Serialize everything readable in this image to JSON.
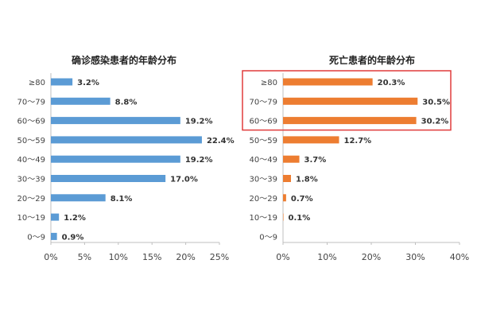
{
  "chart_data": [
    {
      "type": "bar",
      "orientation": "horizontal",
      "title": "确诊感染患者的年龄分布",
      "categories": [
        "≥80",
        "70～79",
        "60～69",
        "50～59",
        "40～49",
        "30～39",
        "20～29",
        "10～19",
        "0～9"
      ],
      "values": [
        3.2,
        8.8,
        19.2,
        22.4,
        19.2,
        17.0,
        8.1,
        1.2,
        0.9
      ],
      "value_labels": [
        "3.2%",
        "8.8%",
        "19.2%",
        "22.4%",
        "19.2%",
        "17.0%",
        "8.1%",
        "1.2%",
        "0.9%"
      ],
      "xlim": [
        0,
        25
      ],
      "xticks": [
        0,
        5,
        10,
        15,
        20,
        25
      ],
      "xtick_labels": [
        "0%",
        "5%",
        "10%",
        "15%",
        "20%",
        "25%"
      ],
      "xlabel": "",
      "ylabel": "",
      "grid": false,
      "color": "#5b9bd5"
    },
    {
      "type": "bar",
      "orientation": "horizontal",
      "title": "死亡患者的年龄分布",
      "categories": [
        "≥80",
        "70～79",
        "60～69",
        "50～59",
        "40～49",
        "30～39",
        "20～29",
        "10～19",
        "0～9"
      ],
      "values": [
        20.3,
        30.5,
        30.2,
        12.7,
        3.7,
        1.8,
        0.7,
        0.1,
        0
      ],
      "value_labels": [
        "20.3%",
        "30.5%",
        "30.2%",
        "12.7%",
        "3.7%",
        "1.8%",
        "0.7%",
        "0.1%",
        ""
      ],
      "xlim": [
        0,
        40
      ],
      "xticks": [
        0,
        10,
        20,
        30,
        40
      ],
      "xtick_labels": [
        "0%",
        "10%",
        "20%",
        "30%",
        "40%"
      ],
      "xlabel": "",
      "ylabel": "",
      "grid": false,
      "color": "#ed7d31",
      "highlight": {
        "categories": [
          "≥80",
          "70～79",
          "60～69"
        ],
        "color": "#e03c3c"
      }
    }
  ]
}
